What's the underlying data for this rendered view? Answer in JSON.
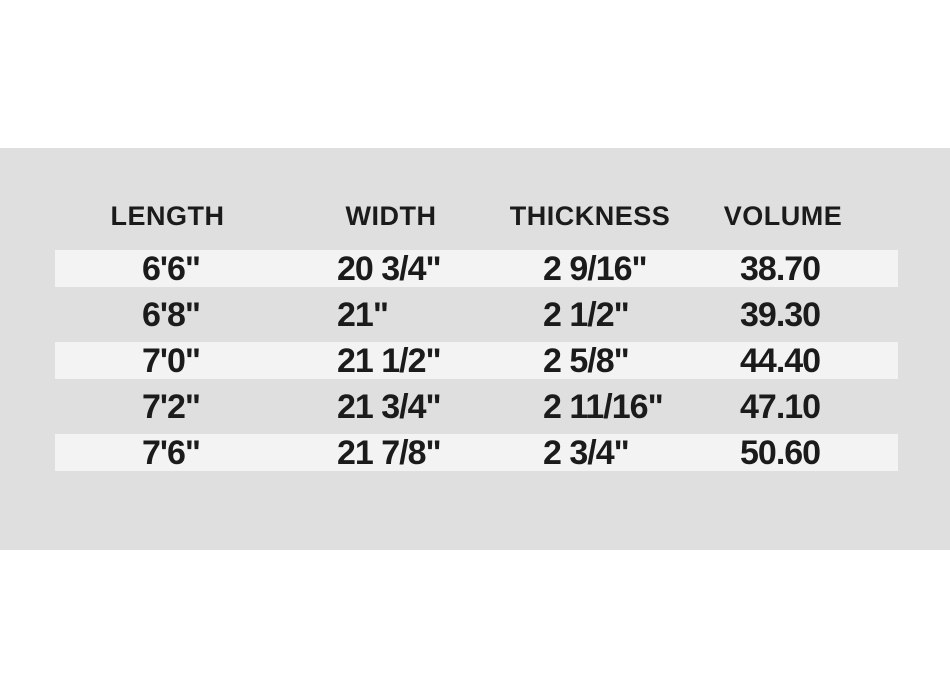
{
  "chart_data": {
    "type": "table",
    "title": "Surfboard dimensions spec table",
    "columns": [
      "LENGTH",
      "WIDTH",
      "THICKNESS",
      "VOLUME"
    ],
    "rows": [
      [
        "6'6\"",
        "20 3/4\"",
        "2 9/16\"",
        "38.70"
      ],
      [
        "6'8\"",
        "21\"",
        "2 1/2\"",
        "39.30"
      ],
      [
        "7'0\"",
        "21 1/2\"",
        "2 5/8\"",
        "44.40"
      ],
      [
        "7'2\"",
        "21 3/4\"",
        "2 11/16\"",
        "47.10"
      ],
      [
        "7'6\"",
        "21 7/8\"",
        "2 3/4\"",
        "50.60"
      ]
    ],
    "layout": {
      "striped_row_indexes": [
        0,
        2,
        4
      ],
      "header_position": "top",
      "grid": "off"
    }
  },
  "colors": {
    "page_background": "#ffffff",
    "panel_background": "#dfdfdf",
    "stripe_background": "#f3f3f3",
    "text": "#1b1b1b"
  }
}
